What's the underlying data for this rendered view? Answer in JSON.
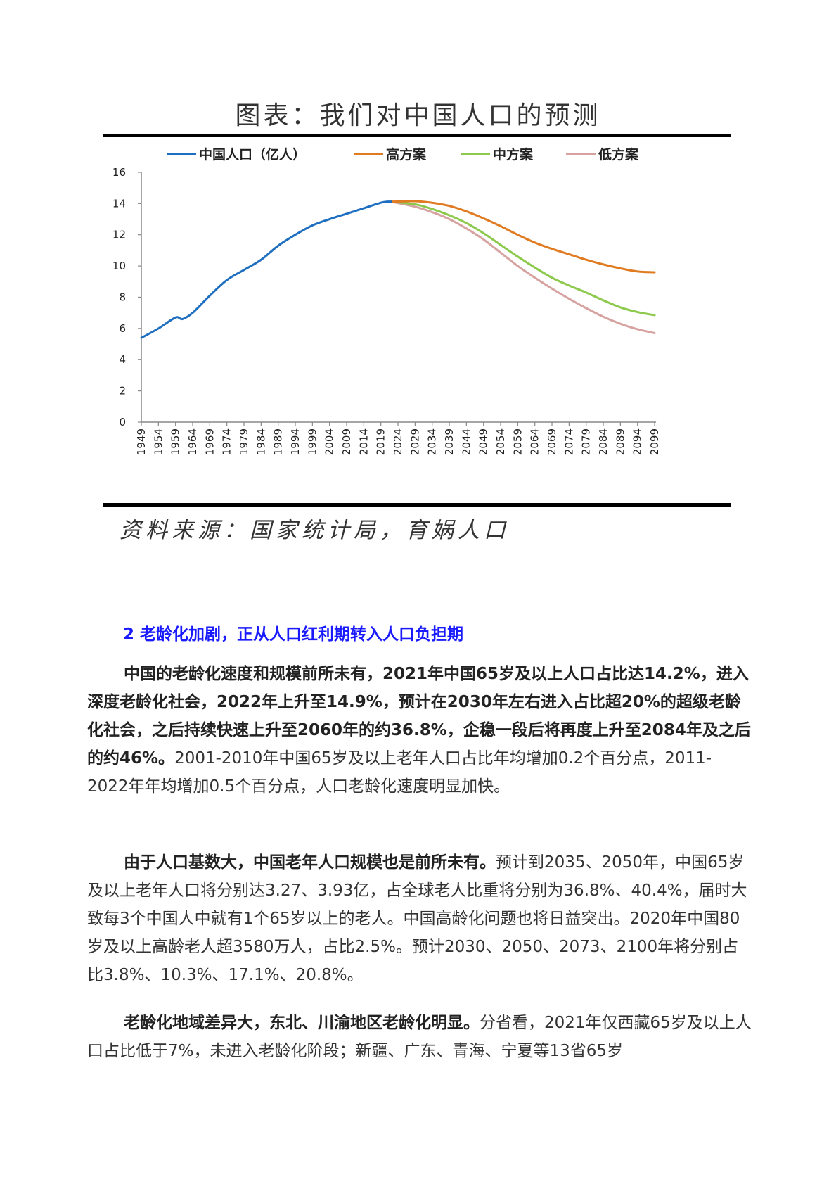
{
  "figure": {
    "title": "图表：我们对中国人口的预测",
    "source": "资料来源：国家统计局，育娲人口"
  },
  "colors": {
    "actual": "#1f6fc0",
    "high": "#e07b22",
    "mid": "#8cc94d",
    "low": "#d6a3a1",
    "heading": "#1a1aff",
    "axis": "#888888"
  },
  "chart_data": {
    "type": "line",
    "title": "我们对中国人口的预测",
    "xlabel": "",
    "ylabel": "",
    "ylim": [
      0,
      16
    ],
    "yticks": [
      0,
      2,
      4,
      6,
      8,
      10,
      12,
      14,
      16
    ],
    "xticks": [
      "1949",
      "1954",
      "1959",
      "1964",
      "1969",
      "1974",
      "1979",
      "1984",
      "1989",
      "1994",
      "1999",
      "2004",
      "2009",
      "2014",
      "2019",
      "2024",
      "2029",
      "2034",
      "2039",
      "2044",
      "2049",
      "2054",
      "2059",
      "2064",
      "2069",
      "2074",
      "2079",
      "2084",
      "2089",
      "2094",
      "2099"
    ],
    "legend_position": "top",
    "grid": false,
    "series": [
      {
        "name": "中国人口（亿人）",
        "color": "#1f6fc0",
        "x": [
          1949,
          1954,
          1959,
          1961,
          1964,
          1969,
          1974,
          1979,
          1984,
          1989,
          1994,
          1999,
          2004,
          2009,
          2014,
          2019,
          2021,
          2022
        ],
        "values": [
          5.4,
          6.0,
          6.7,
          6.6,
          7.0,
          8.1,
          9.1,
          9.75,
          10.4,
          11.3,
          12.0,
          12.6,
          13.0,
          13.35,
          13.7,
          14.05,
          14.12,
          14.12
        ]
      },
      {
        "name": "高方案",
        "color": "#e07b22",
        "x": [
          2022,
          2029,
          2034,
          2039,
          2044,
          2049,
          2054,
          2059,
          2064,
          2069,
          2074,
          2079,
          2084,
          2089,
          2094,
          2099
        ],
        "values": [
          14.12,
          14.15,
          14.05,
          13.85,
          13.5,
          13.05,
          12.55,
          12.0,
          11.5,
          11.1,
          10.75,
          10.4,
          10.1,
          9.85,
          9.65,
          9.6
        ]
      },
      {
        "name": "中方案",
        "color": "#8cc94d",
        "x": [
          2022,
          2029,
          2034,
          2039,
          2044,
          2049,
          2054,
          2059,
          2064,
          2069,
          2074,
          2079,
          2084,
          2089,
          2094,
          2099
        ],
        "values": [
          14.12,
          13.95,
          13.65,
          13.25,
          12.75,
          12.1,
          11.35,
          10.6,
          9.9,
          9.25,
          8.75,
          8.3,
          7.8,
          7.35,
          7.05,
          6.85
        ]
      },
      {
        "name": "低方案",
        "color": "#d6a3a1",
        "x": [
          2022,
          2029,
          2034,
          2039,
          2044,
          2049,
          2054,
          2059,
          2064,
          2069,
          2074,
          2079,
          2084,
          2089,
          2094,
          2099
        ],
        "values": [
          14.12,
          13.8,
          13.45,
          13.0,
          12.4,
          11.7,
          10.85,
          10.0,
          9.25,
          8.55,
          7.9,
          7.3,
          6.75,
          6.3,
          5.95,
          5.7
        ]
      }
    ]
  },
  "section": {
    "heading": "2 老龄化加剧，正从人口红利期转入人口负担期"
  },
  "paragraphs": [
    {
      "bold": "中国的老龄化速度和规模前所未有，2021年中国65岁及以上人口占比达14.2%，进入深度老龄化社会，2022年上升至14.9%，预计在2030年左右进入占比超20%的超级老龄化社会，之后持续快速上升至2060年的约36.8%，企稳一段后将再度上升至2084年及之后的约46%。",
      "normal": "2001-2010年中国65岁及以上老年人口占比年均增加0.2个百分点，2011-2022年年均增加0.5个百分点，人口老龄化速度明显加快。"
    },
    {
      "bold": "由于人口基数大，中国老年人口规模也是前所未有。",
      "normal": "预计到2035、2050年，中国65岁及以上老年人口将分别达3.27、3.93亿，占全球老人比重将分别为36.8%、40.4%，届时大致每3个中国人中就有1个65岁以上的老人。中国高龄化问题也将日益突出。2020年中国80岁及以上高龄老人超3580万人，占比2.5%。预计2030、2050、2073、2100年将分别占比3.8%、10.3%、17.1%、20.8%。"
    },
    {
      "bold": "老龄化地域差异大，东北、川渝地区老龄化明显。",
      "normal": "分省看，2021年仅西藏65岁及以上人口占比低于7%，未进入老龄化阶段；新疆、广东、青海、宁夏等13省65岁"
    }
  ]
}
